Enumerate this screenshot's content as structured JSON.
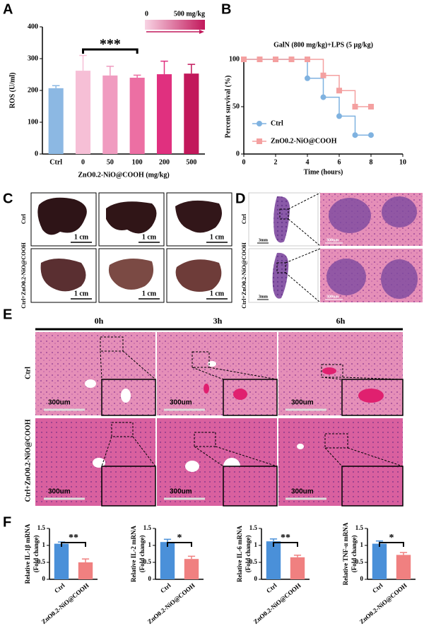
{
  "chart_data": [
    {
      "panel": "A",
      "type": "bar",
      "ylabel": "ROS (U/ml)",
      "xlabel": "ZnO0.2-NiO@COOH (mg/kg)",
      "categories": [
        "Ctrl",
        "0",
        "50",
        "100",
        "200",
        "500"
      ],
      "values": [
        207,
        262,
        247,
        240,
        251,
        253
      ],
      "errors": [
        8,
        48,
        29,
        8,
        41,
        29
      ],
      "colors": [
        "#8cb8e3",
        "#f6bfd6",
        "#f09cc0",
        "#ec6fa3",
        "#e0307f",
        "#c2185b"
      ],
      "ylim": [
        0,
        400
      ],
      "yticks": [
        0,
        100,
        200,
        300,
        400
      ],
      "significance": "***",
      "gradient_legend": {
        "min_label": "0",
        "max_label": "500 mg/kg",
        "colors": [
          "#f8d4e4",
          "#c2185b"
        ]
      }
    },
    {
      "panel": "B",
      "type": "line",
      "step": true,
      "title": "GalN (800 mg/kg)+LPS (5 μg/kg)",
      "ylabel": "Percent survival (%)",
      "xlabel": "Time (hours)",
      "x": [
        0,
        1,
        2,
        3,
        4,
        5,
        6,
        7,
        8
      ],
      "series": [
        {
          "name": "Ctrl",
          "color": "#7fb2e0",
          "marker": "circle",
          "values": [
            100,
            100,
            100,
            100,
            80,
            60,
            40,
            20,
            20
          ]
        },
        {
          "name": "ZnO0.2-NiO@COOH",
          "color": "#f4a0a0",
          "marker": "square",
          "values": [
            100,
            100,
            100,
            100,
            100,
            83,
            67,
            50,
            50
          ]
        }
      ],
      "xlim": [
        0,
        10
      ],
      "xticks": [
        0,
        2,
        4,
        6,
        8,
        10
      ],
      "ylim": [
        0,
        100
      ],
      "yticks": [
        0,
        50,
        100
      ]
    },
    {
      "type": "bar",
      "ylabel": [
        "Relative IL-1β mRNA",
        "(Fold change)"
      ],
      "categories": [
        "Ctrl",
        "ZnO0.2-NiO@COOH"
      ],
      "values": [
        1.05,
        0.5
      ],
      "errors": [
        0.05,
        0.1
      ],
      "colors": [
        "#4a90d9",
        "#f08080"
      ],
      "ylim": [
        0,
        1.5
      ],
      "yticks": [
        0,
        0.5,
        1,
        1.5
      ],
      "significance": "**"
    },
    {
      "type": "bar",
      "ylabel": [
        "Relative IL-2 mRNA",
        "(Fold change)"
      ],
      "categories": [
        "Ctrl",
        "ZnO0.2-NiO@COOH"
      ],
      "values": [
        1.1,
        0.6
      ],
      "errors": [
        0.08,
        0.08
      ],
      "colors": [
        "#4a90d9",
        "#f08080"
      ],
      "ylim": [
        0,
        1.5
      ],
      "yticks": [
        0,
        0.5,
        1,
        1.5
      ],
      "significance": "*"
    },
    {
      "type": "bar",
      "ylabel": [
        "Relative IL-6 mRNA",
        "(Fold change)"
      ],
      "categories": [
        "Ctrl",
        "ZnO0.2-NiO@COOH"
      ],
      "values": [
        1.12,
        0.65
      ],
      "errors": [
        0.07,
        0.06
      ],
      "colors": [
        "#4a90d9",
        "#f08080"
      ],
      "ylim": [
        0,
        1.5
      ],
      "yticks": [
        0,
        0.5,
        1,
        1.5
      ],
      "significance": "**"
    },
    {
      "type": "bar",
      "ylabel": [
        "Relative TNF-α mRNA",
        "(Fold change)"
      ],
      "categories": [
        "Ctrl",
        "ZnO0.2-NiO@COOH"
      ],
      "values": [
        1.05,
        0.72
      ],
      "errors": [
        0.08,
        0.07
      ],
      "colors": [
        "#4a90d9",
        "#f08080"
      ],
      "ylim": [
        0,
        1.5
      ],
      "yticks": [
        0,
        0.5,
        1,
        1.5
      ],
      "significance": "*"
    }
  ],
  "panels": {
    "C": {
      "label": "C",
      "rows": [
        "Ctrl",
        "Ctrl+ZnO0.2-NiO@COOH"
      ],
      "scale_bar": "1 cm"
    },
    "D": {
      "label": "D",
      "rows": [
        "Ctrl",
        "Ctrl+ZnO0.2-NiO@COOH"
      ],
      "scale_whole": "3mm",
      "scale_zoom": "300um"
    },
    "E": {
      "label": "E",
      "columns": [
        "0h",
        "3h",
        "6h"
      ],
      "rows": [
        "Ctrl",
        "Ctrl+ZnO0.2-NiO@COOH"
      ],
      "scale_bar": "300um"
    },
    "F": {
      "label": "F"
    }
  }
}
